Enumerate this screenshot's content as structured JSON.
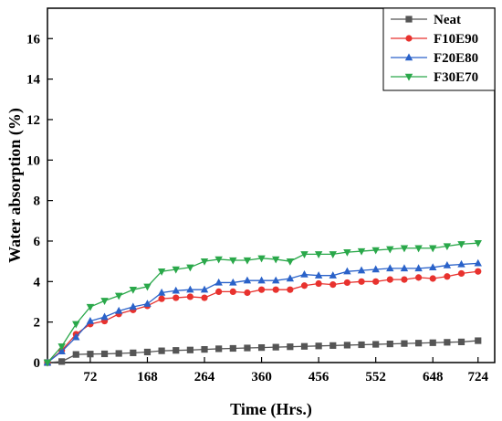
{
  "chart_data": {
    "type": "line",
    "xlabel": "Time (Hrs.)",
    "ylabel": "Water absorption (%)",
    "xlim": [
      0,
      752
    ],
    "ylim": [
      0,
      17.5
    ],
    "x_ticks": [
      72,
      168,
      264,
      360,
      456,
      552,
      648,
      724
    ],
    "y_ticks": [
      0,
      2,
      4,
      6,
      8,
      10,
      12,
      14,
      16
    ],
    "legend_position": "top-right",
    "grid": false,
    "x": [
      0,
      24,
      48,
      72,
      96,
      120,
      144,
      168,
      192,
      216,
      240,
      264,
      288,
      312,
      336,
      360,
      384,
      408,
      432,
      456,
      480,
      504,
      528,
      552,
      576,
      600,
      624,
      648,
      672,
      696,
      724
    ],
    "series": [
      {
        "name": "Neat",
        "color": "#555555",
        "marker": "square",
        "values": [
          0,
          0.05,
          0.4,
          0.42,
          0.43,
          0.45,
          0.48,
          0.52,
          0.58,
          0.6,
          0.62,
          0.65,
          0.68,
          0.7,
          0.72,
          0.74,
          0.76,
          0.78,
          0.8,
          0.82,
          0.84,
          0.86,
          0.88,
          0.9,
          0.92,
          0.94,
          0.96,
          0.98,
          1.0,
          1.02,
          1.08
        ]
      },
      {
        "name": "F10E90",
        "color": "#e8322e",
        "marker": "circle",
        "values": [
          0,
          0.6,
          1.4,
          1.9,
          2.05,
          2.4,
          2.6,
          2.8,
          3.15,
          3.2,
          3.25,
          3.2,
          3.5,
          3.5,
          3.45,
          3.6,
          3.6,
          3.6,
          3.8,
          3.9,
          3.85,
          3.95,
          4.0,
          4.0,
          4.1,
          4.1,
          4.2,
          4.15,
          4.25,
          4.4,
          4.5
        ]
      },
      {
        "name": "F20E80",
        "color": "#2a62c9",
        "marker": "triangle-up",
        "values": [
          0,
          0.55,
          1.25,
          2.05,
          2.25,
          2.55,
          2.75,
          2.9,
          3.45,
          3.55,
          3.6,
          3.6,
          3.95,
          3.95,
          4.05,
          4.05,
          4.05,
          4.15,
          4.35,
          4.3,
          4.3,
          4.5,
          4.55,
          4.6,
          4.65,
          4.65,
          4.65,
          4.7,
          4.8,
          4.85,
          4.9
        ]
      },
      {
        "name": "F30E70",
        "color": "#2aa84a",
        "marker": "triangle-down",
        "values": [
          0,
          0.8,
          1.9,
          2.75,
          3.05,
          3.3,
          3.6,
          3.75,
          4.5,
          4.6,
          4.7,
          5.0,
          5.1,
          5.05,
          5.05,
          5.15,
          5.1,
          5.0,
          5.35,
          5.35,
          5.35,
          5.45,
          5.5,
          5.55,
          5.6,
          5.65,
          5.65,
          5.65,
          5.75,
          5.85,
          5.9
        ]
      }
    ]
  }
}
